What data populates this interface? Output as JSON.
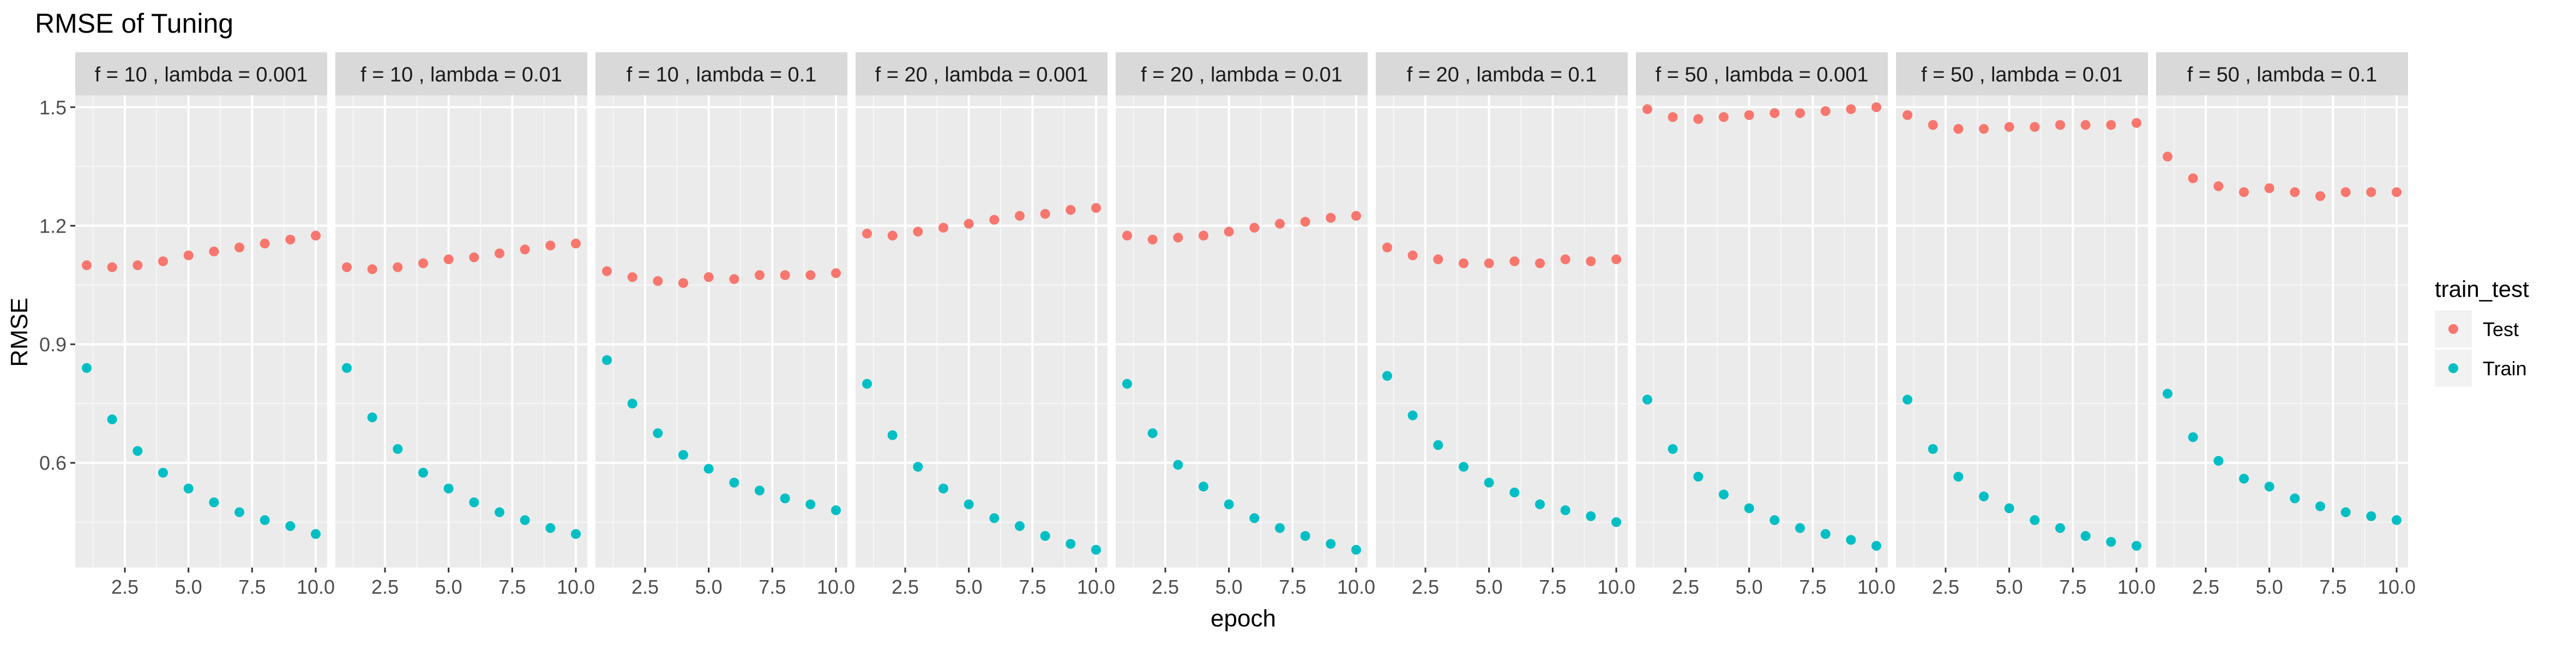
{
  "chart_data": {
    "type": "scatter",
    "title": "RMSE of Tuning",
    "xlabel": "epoch",
    "ylabel": "RMSE",
    "xlim": [
      0.55,
      10.45
    ],
    "ylim": [
      0.335,
      1.53
    ],
    "x_ticks": [
      2.5,
      5.0,
      7.5,
      10.0
    ],
    "x_tick_labels": [
      "2.5",
      "5.0",
      "7.5",
      "10.0"
    ],
    "y_ticks": [
      0.6,
      0.9,
      1.2,
      1.5
    ],
    "y_tick_labels": [
      "0.6",
      "0.9",
      "1.2",
      "1.5"
    ],
    "grid": true,
    "legend": {
      "title": "train_test",
      "position": "right",
      "entries": [
        {
          "label": "Test",
          "color": "#F8766D"
        },
        {
          "label": "Train",
          "color": "#00BFC4"
        }
      ]
    },
    "colors": {
      "Test": "#F8766D",
      "Train": "#00BFC4",
      "panel_bg": "#EBEBEB",
      "strip_bg": "#D9D9D9"
    },
    "x": [
      1,
      2,
      3,
      4,
      5,
      6,
      7,
      8,
      9,
      10
    ],
    "facets": [
      {
        "label": "f =  10 , lambda =  0.001",
        "series": [
          {
            "name": "Test",
            "values": [
              1.1,
              1.095,
              1.1,
              1.11,
              1.125,
              1.135,
              1.145,
              1.155,
              1.165,
              1.175
            ]
          },
          {
            "name": "Train",
            "values": [
              0.84,
              0.71,
              0.63,
              0.575,
              0.535,
              0.5,
              0.475,
              0.455,
              0.44,
              0.42
            ]
          }
        ]
      },
      {
        "label": "f =  10 , lambda =  0.01",
        "series": [
          {
            "name": "Test",
            "values": [
              1.095,
              1.09,
              1.095,
              1.105,
              1.115,
              1.12,
              1.13,
              1.14,
              1.15,
              1.155
            ]
          },
          {
            "name": "Train",
            "values": [
              0.84,
              0.715,
              0.635,
              0.575,
              0.535,
              0.5,
              0.475,
              0.455,
              0.435,
              0.42
            ]
          }
        ]
      },
      {
        "label": "f =  10 , lambda =  0.1",
        "series": [
          {
            "name": "Test",
            "values": [
              1.085,
              1.07,
              1.06,
              1.055,
              1.07,
              1.065,
              1.075,
              1.075,
              1.075,
              1.08
            ]
          },
          {
            "name": "Train",
            "values": [
              0.86,
              0.75,
              0.675,
              0.62,
              0.585,
              0.55,
              0.53,
              0.51,
              0.495,
              0.48
            ]
          }
        ]
      },
      {
        "label": "f =  20 , lambda =  0.001",
        "series": [
          {
            "name": "Test",
            "values": [
              1.18,
              1.175,
              1.185,
              1.195,
              1.205,
              1.215,
              1.225,
              1.23,
              1.24,
              1.245
            ]
          },
          {
            "name": "Train",
            "values": [
              0.8,
              0.67,
              0.59,
              0.535,
              0.495,
              0.46,
              0.44,
              0.415,
              0.395,
              0.38
            ]
          }
        ]
      },
      {
        "label": "f =  20 , lambda =  0.01",
        "series": [
          {
            "name": "Test",
            "values": [
              1.175,
              1.165,
              1.17,
              1.175,
              1.185,
              1.195,
              1.205,
              1.21,
              1.22,
              1.225
            ]
          },
          {
            "name": "Train",
            "values": [
              0.8,
              0.675,
              0.595,
              0.54,
              0.495,
              0.46,
              0.435,
              0.415,
              0.395,
              0.38
            ]
          }
        ]
      },
      {
        "label": "f =  20 , lambda =  0.1",
        "series": [
          {
            "name": "Test",
            "values": [
              1.145,
              1.125,
              1.115,
              1.105,
              1.105,
              1.11,
              1.105,
              1.115,
              1.11,
              1.115
            ]
          },
          {
            "name": "Train",
            "values": [
              0.82,
              0.72,
              0.645,
              0.59,
              0.55,
              0.525,
              0.495,
              0.48,
              0.465,
              0.45
            ]
          }
        ]
      },
      {
        "label": "f =  50 , lambda =  0.001",
        "series": [
          {
            "name": "Test",
            "values": [
              1.495,
              1.475,
              1.47,
              1.475,
              1.48,
              1.485,
              1.485,
              1.49,
              1.495,
              1.5
            ]
          },
          {
            "name": "Train",
            "values": [
              0.76,
              0.635,
              0.565,
              0.52,
              0.485,
              0.455,
              0.435,
              0.42,
              0.405,
              0.39
            ]
          }
        ]
      },
      {
        "label": "f =  50 , lambda =  0.01",
        "series": [
          {
            "name": "Test",
            "values": [
              1.48,
              1.455,
              1.445,
              1.445,
              1.45,
              1.45,
              1.455,
              1.455,
              1.455,
              1.46
            ]
          },
          {
            "name": "Train",
            "values": [
              0.76,
              0.635,
              0.565,
              0.515,
              0.485,
              0.455,
              0.435,
              0.415,
              0.4,
              0.39
            ]
          }
        ]
      },
      {
        "label": "f =  50 , lambda =  0.1",
        "series": [
          {
            "name": "Test",
            "values": [
              1.375,
              1.32,
              1.3,
              1.285,
              1.295,
              1.285,
              1.275,
              1.285,
              1.285,
              1.285
            ]
          },
          {
            "name": "Train",
            "values": [
              0.775,
              0.665,
              0.605,
              0.56,
              0.54,
              0.51,
              0.49,
              0.475,
              0.465,
              0.455
            ]
          }
        ]
      }
    ]
  }
}
